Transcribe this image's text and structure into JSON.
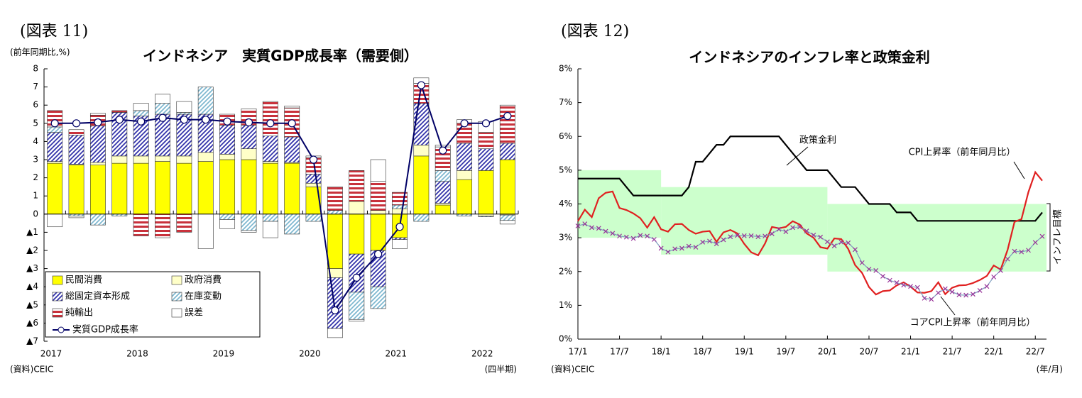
{
  "chart_data": [
    {
      "type": "bar",
      "stacked": true,
      "figure_label": "(図表 11)",
      "title": "インドネシア　実質GDP成長率（需要側）",
      "y_label": "(前年同期比,%)",
      "x_unit": "(四半期)",
      "source": "(資料)CEIC",
      "categories": [
        "2017",
        null,
        null,
        null,
        "2018",
        null,
        null,
        null,
        "2019",
        null,
        null,
        null,
        "2020",
        null,
        null,
        null,
        "2021",
        null,
        null,
        null,
        "2022",
        null
      ],
      "ylim": [
        -7,
        8
      ],
      "yticks": [
        {
          "value": -7,
          "label": "▲7"
        },
        {
          "value": -6,
          "label": "▲6"
        },
        {
          "value": -5,
          "label": "▲5"
        },
        {
          "value": -4,
          "label": "▲4"
        },
        {
          "value": -3,
          "label": "▲3"
        },
        {
          "value": -2,
          "label": "▲2"
        },
        {
          "value": -1,
          "label": "▲1"
        },
        0,
        1,
        2,
        3,
        4,
        5,
        6,
        7,
        8
      ],
      "legend": "lower left",
      "series": [
        {
          "name": "民間消費",
          "color": "#ffff00",
          "values": [
            2.8,
            2.7,
            2.7,
            2.8,
            2.8,
            2.9,
            2.8,
            2.9,
            3.0,
            3.0,
            2.8,
            2.8,
            1.5,
            -3.0,
            -2.2,
            -2.0,
            -1.3,
            3.2,
            0.5,
            1.9,
            2.4,
            3.0
          ]
        },
        {
          "name": "政府消費",
          "color": "#ffffc8",
          "values": [
            0.1,
            0.05,
            0.15,
            0.4,
            0.4,
            0.3,
            0.4,
            0.5,
            0.3,
            0.6,
            0.1,
            0.05,
            0.2,
            -0.5,
            0.7,
            0.2,
            0.3,
            0.6,
            0.1,
            0.5,
            -0.1,
            -0.05
          ]
        },
        {
          "name": "総固定資本形成",
          "color": "#3333aa",
          "pattern": "diagonal",
          "values": [
            1.6,
            1.6,
            2.0,
            2.4,
            2.2,
            2.3,
            2.3,
            2.1,
            1.6,
            1.3,
            1.4,
            1.4,
            0.5,
            -2.8,
            -2.1,
            -2.0,
            -0.1,
            2.3,
            1.2,
            1.5,
            1.2,
            0.9
          ]
        },
        {
          "name": "在庫変動",
          "color": "#7fb8d0",
          "pattern": "diagonal",
          "values": [
            0.3,
            -0.1,
            -0.6,
            -0.1,
            0.3,
            0.6,
            0.1,
            1.5,
            -0.3,
            -0.9,
            -0.4,
            -1.1,
            -0.4,
            0.2,
            -1.5,
            -1.2,
            0.2,
            -0.4,
            0.6,
            -0.1,
            -0.05,
            -0.3
          ]
        },
        {
          "name": "純輸出",
          "color": "#c8323c",
          "pattern": "horizontal",
          "values": [
            0.9,
            0.3,
            0.6,
            0.1,
            -1.2,
            -1.3,
            -1.0,
            0.0,
            0.6,
            0.9,
            1.9,
            1.6,
            0.9,
            1.3,
            1.7,
            1.6,
            0.7,
            1.1,
            1.3,
            1.1,
            0.9,
            2.1
          ]
        },
        {
          "name": "誤差",
          "color": "#ffffff",
          "values": [
            -0.7,
            -0.1,
            0.1,
            0.0,
            0.4,
            0.5,
            0.6,
            -1.9,
            -0.5,
            -0.1,
            -0.9,
            0.1,
            0.1,
            -0.5,
            -0.1,
            1.2,
            -0.5,
            0.3,
            0.1,
            0.2,
            0.6,
            -0.2
          ]
        },
        {
          "name": "実質GDP成長率",
          "color": "#000066",
          "type": "line",
          "values": [
            5.0,
            5.0,
            5.05,
            5.2,
            5.1,
            5.3,
            5.2,
            5.2,
            5.1,
            5.05,
            5.0,
            5.0,
            3.0,
            -5.3,
            -3.5,
            -2.2,
            -0.7,
            7.1,
            3.5,
            5.0,
            5.0,
            5.4
          ]
        }
      ]
    },
    {
      "type": "line",
      "figure_label": "(図表 12)",
      "title": "インドネシアのインフレ率と政策金利",
      "x_unit": "(年/月)",
      "source": "(資料)CEIC",
      "categories": [
        "17/1",
        null,
        null,
        null,
        null,
        null,
        "17/7",
        null,
        null,
        null,
        null,
        null,
        "18/1",
        null,
        null,
        null,
        null,
        null,
        "18/7",
        null,
        null,
        null,
        null,
        null,
        "19/1",
        null,
        null,
        null,
        null,
        null,
        "19/7",
        null,
        null,
        null,
        null,
        null,
        "20/1",
        null,
        null,
        null,
        null,
        null,
        "20/7",
        null,
        null,
        null,
        null,
        null,
        "21/1",
        null,
        null,
        null,
        null,
        null,
        "21/7",
        null,
        null,
        null,
        null,
        null,
        "22/1",
        null,
        null,
        null,
        null,
        null,
        "22/7",
        null
      ],
      "ylim": [
        0,
        8
      ],
      "yticks": [
        {
          "value": 0,
          "label": "0%"
        },
        {
          "value": 1,
          "label": "1%"
        },
        {
          "value": 2,
          "label": "2%"
        },
        {
          "value": 3,
          "label": "3%"
        },
        {
          "value": 4,
          "label": "4%"
        },
        {
          "value": 5,
          "label": "5%"
        },
        {
          "value": 6,
          "label": "6%"
        },
        {
          "value": 7,
          "label": "7%"
        },
        {
          "value": 8,
          "label": "8%"
        }
      ],
      "target_band": {
        "name": "インフレ目標",
        "color": "#ccffcc",
        "segments": [
          {
            "start": "17/1",
            "lower": 3,
            "upper": 5
          },
          {
            "start": "18/1",
            "lower": 2.5,
            "upper": 4.5
          },
          {
            "start": "20/1",
            "lower": 2,
            "upper": 4
          }
        ]
      },
      "series": [
        {
          "name": "政策金利",
          "color": "#000000",
          "values": [
            4.75,
            4.75,
            4.75,
            4.75,
            4.75,
            4.75,
            4.75,
            4.5,
            4.25,
            4.25,
            4.25,
            4.25,
            4.25,
            4.25,
            4.25,
            4.25,
            4.5,
            5.25,
            5.25,
            5.5,
            5.75,
            5.75,
            6.0,
            6.0,
            6.0,
            6.0,
            6.0,
            6.0,
            6.0,
            6.0,
            5.75,
            5.5,
            5.25,
            5.0,
            5.0,
            5.0,
            5.0,
            4.75,
            4.5,
            4.5,
            4.5,
            4.25,
            4.0,
            4.0,
            4.0,
            4.0,
            3.75,
            3.75,
            3.75,
            3.5,
            3.5,
            3.5,
            3.5,
            3.5,
            3.5,
            3.5,
            3.5,
            3.5,
            3.5,
            3.5,
            3.5,
            3.5,
            3.5,
            3.5,
            3.5,
            3.5,
            3.5,
            3.75
          ]
        },
        {
          "name": "CPI上昇率（前年同月比）",
          "color": "#e02020",
          "values": [
            3.49,
            3.83,
            3.61,
            4.17,
            4.33,
            4.37,
            3.88,
            3.82,
            3.72,
            3.58,
            3.3,
            3.61,
            3.25,
            3.18,
            3.4,
            3.41,
            3.23,
            3.12,
            3.18,
            3.2,
            2.88,
            3.16,
            3.23,
            3.13,
            2.82,
            2.57,
            2.48,
            2.83,
            3.32,
            3.28,
            3.32,
            3.49,
            3.39,
            3.13,
            3.0,
            2.72,
            2.68,
            2.98,
            2.96,
            2.67,
            2.19,
            1.96,
            1.54,
            1.32,
            1.42,
            1.44,
            1.59,
            1.68,
            1.55,
            1.38,
            1.37,
            1.42,
            1.68,
            1.33,
            1.52,
            1.59,
            1.6,
            1.66,
            1.75,
            1.87,
            2.18,
            2.06,
            2.64,
            3.47,
            3.55,
            4.35,
            4.94,
            4.69
          ]
        },
        {
          "name": "コアCPI上昇率（前年同月比）",
          "color": "#7f9fbf",
          "marker": "x",
          "marker_color": "#993399",
          "values": [
            3.35,
            3.41,
            3.3,
            3.28,
            3.19,
            3.13,
            3.05,
            3.02,
            2.98,
            3.07,
            3.05,
            2.95,
            2.69,
            2.58,
            2.67,
            2.69,
            2.75,
            2.72,
            2.87,
            2.9,
            2.82,
            2.94,
            3.03,
            3.07,
            3.06,
            3.06,
            3.03,
            3.05,
            3.12,
            3.25,
            3.18,
            3.3,
            3.32,
            3.2,
            3.08,
            3.02,
            2.88,
            2.76,
            2.87,
            2.85,
            2.65,
            2.26,
            2.07,
            2.03,
            1.86,
            1.74,
            1.67,
            1.6,
            1.56,
            1.53,
            1.21,
            1.18,
            1.37,
            1.49,
            1.4,
            1.31,
            1.3,
            1.33,
            1.44,
            1.56,
            1.84,
            2.03,
            2.37,
            2.6,
            2.58,
            2.63,
            2.86,
            3.04
          ]
        }
      ]
    }
  ]
}
